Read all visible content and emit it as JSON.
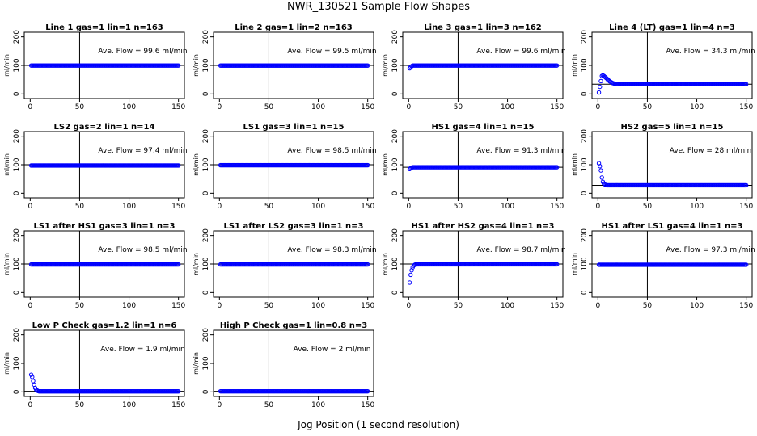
{
  "title": "NWR_130521  Sample Flow Shapes",
  "xlabel": "Jog Position (1 second resolution)",
  "chart_data": [
    {
      "type": "scatter",
      "title": "Line 1 gas=1 lin=1 n=163",
      "ylabel": "ml/min",
      "annotation": "Ave. Flow = 99.6  ml/min",
      "xlim": [
        0,
        150
      ],
      "ylim": [
        0,
        200
      ],
      "x_ticks": [
        0,
        50,
        100,
        150
      ],
      "y_ticks": [
        0,
        100,
        200
      ],
      "vline_x": 50,
      "hline_y": 100,
      "point_color": "#0000ff",
      "shape": {
        "kind": "flat",
        "level": 99.6
      }
    },
    {
      "type": "scatter",
      "title": "Line 2 gas=1 lin=2 n=163",
      "ylabel": "ml/min",
      "annotation": "Ave. Flow = 99.5  ml/min",
      "xlim": [
        0,
        150
      ],
      "ylim": [
        0,
        200
      ],
      "x_ticks": [
        0,
        50,
        100,
        150
      ],
      "y_ticks": [
        0,
        100,
        200
      ],
      "vline_x": 50,
      "hline_y": 100,
      "point_color": "#0000ff",
      "shape": {
        "kind": "flat",
        "level": 99.5
      }
    },
    {
      "type": "scatter",
      "title": "Line 3 gas=1 lin=3 n=162",
      "ylabel": "ml/min",
      "annotation": "Ave. Flow = 99.6  ml/min",
      "xlim": [
        0,
        150
      ],
      "ylim": [
        0,
        200
      ],
      "x_ticks": [
        0,
        50,
        100,
        150
      ],
      "y_ticks": [
        0,
        100,
        200
      ],
      "vline_x": 50,
      "hline_y": 100,
      "point_color": "#0000ff",
      "shape": {
        "kind": "rise",
        "start": [
          [
            1,
            90
          ],
          [
            2,
            94
          ],
          [
            3,
            97
          ]
        ],
        "level": 99.6
      }
    },
    {
      "type": "scatter",
      "title": "Line 4 (LT) gas=1 lin=4 n=3",
      "ylabel": "ml/min",
      "annotation": "Ave. Flow = 34.3  ml/min",
      "xlim": [
        0,
        150
      ],
      "ylim": [
        0,
        200
      ],
      "x_ticks": [
        0,
        50,
        100,
        150
      ],
      "y_ticks": [
        0,
        100,
        200
      ],
      "vline_x": 50,
      "hline_y": 34.3,
      "point_color": "#0000ff",
      "shape": {
        "kind": "spike",
        "start": [
          [
            1,
            5
          ],
          [
            2,
            25
          ],
          [
            3,
            45
          ],
          [
            4,
            63
          ],
          [
            5,
            65
          ],
          [
            6,
            63
          ],
          [
            7,
            60
          ],
          [
            8,
            57
          ],
          [
            9,
            54
          ],
          [
            10,
            50
          ],
          [
            11,
            47
          ],
          [
            12,
            44
          ],
          [
            13,
            42
          ],
          [
            14,
            40
          ],
          [
            15,
            38
          ],
          [
            16,
            37
          ],
          [
            17,
            36
          ],
          [
            18,
            35.5
          ],
          [
            19,
            35
          ]
        ],
        "level": 34.3
      }
    },
    {
      "type": "scatter",
      "title": "LS2 gas=2 lin=1 n=14",
      "ylabel": "ml/min",
      "annotation": "Ave. Flow = 97.4  ml/min",
      "xlim": [
        0,
        150
      ],
      "ylim": [
        0,
        200
      ],
      "x_ticks": [
        0,
        50,
        100,
        150
      ],
      "y_ticks": [
        0,
        100,
        200
      ],
      "vline_x": 50,
      "hline_y": 100,
      "point_color": "#0000ff",
      "shape": {
        "kind": "flat",
        "level": 97.4
      }
    },
    {
      "type": "scatter",
      "title": "LS1 gas=3 lin=1 n=15",
      "ylabel": "ml/min",
      "annotation": "Ave. Flow = 98.5  ml/min",
      "xlim": [
        0,
        150
      ],
      "ylim": [
        0,
        200
      ],
      "x_ticks": [
        0,
        50,
        100,
        150
      ],
      "y_ticks": [
        0,
        100,
        200
      ],
      "vline_x": 50,
      "hline_y": 100,
      "point_color": "#0000ff",
      "shape": {
        "kind": "flat",
        "level": 98.5
      }
    },
    {
      "type": "scatter",
      "title": "HS1 gas=4 lin=1 n=15",
      "ylabel": "ml/min",
      "annotation": "Ave. Flow = 91.3  ml/min",
      "xlim": [
        0,
        150
      ],
      "ylim": [
        0,
        200
      ],
      "x_ticks": [
        0,
        50,
        100,
        150
      ],
      "y_ticks": [
        0,
        100,
        200
      ],
      "vline_x": 50,
      "hline_y": 91.3,
      "point_color": "#0000ff",
      "shape": {
        "kind": "rise",
        "start": [
          [
            1,
            85
          ],
          [
            2,
            88
          ],
          [
            3,
            90
          ]
        ],
        "level": 91.3
      }
    },
    {
      "type": "scatter",
      "title": "HS2 gas=5 lin=1 n=15",
      "ylabel": "ml/min",
      "annotation": "Ave. Flow = 28  ml/min",
      "xlim": [
        0,
        150
      ],
      "ylim": [
        0,
        200
      ],
      "x_ticks": [
        0,
        50,
        100,
        150
      ],
      "y_ticks": [
        0,
        100,
        200
      ],
      "vline_x": 50,
      "hline_y": 28,
      "point_color": "#0000ff",
      "shape": {
        "kind": "spike",
        "start": [
          [
            1,
            105
          ],
          [
            2,
            95
          ],
          [
            3,
            80
          ],
          [
            4,
            55
          ],
          [
            5,
            40
          ],
          [
            6,
            34
          ],
          [
            7,
            31
          ],
          [
            8,
            29
          ]
        ],
        "level": 28
      }
    },
    {
      "type": "scatter",
      "title": "LS1 after HS1 gas=3 lin=1 n=3",
      "ylabel": "ml/min",
      "annotation": "Ave. Flow = 98.5  ml/min",
      "xlim": [
        0,
        150
      ],
      "ylim": [
        0,
        200
      ],
      "x_ticks": [
        0,
        50,
        100,
        150
      ],
      "y_ticks": [
        0,
        100,
        200
      ],
      "vline_x": 50,
      "hline_y": 100,
      "point_color": "#0000ff",
      "shape": {
        "kind": "flat",
        "level": 98.5
      }
    },
    {
      "type": "scatter",
      "title": "LS1 after LS2 gas=3 lin=1 n=3",
      "ylabel": "ml/min",
      "annotation": "Ave. Flow = 98.3  ml/min",
      "xlim": [
        0,
        150
      ],
      "ylim": [
        0,
        200
      ],
      "x_ticks": [
        0,
        50,
        100,
        150
      ],
      "y_ticks": [
        0,
        100,
        200
      ],
      "vline_x": 50,
      "hline_y": 100,
      "point_color": "#0000ff",
      "shape": {
        "kind": "flat",
        "level": 98.3
      }
    },
    {
      "type": "scatter",
      "title": "HS1 after HS2 gas=4 lin=1 n=3",
      "ylabel": "ml/min",
      "annotation": "Ave. Flow = 98.7  ml/min",
      "xlim": [
        0,
        150
      ],
      "ylim": [
        0,
        200
      ],
      "x_ticks": [
        0,
        50,
        100,
        150
      ],
      "y_ticks": [
        0,
        100,
        200
      ],
      "vline_x": 50,
      "hline_y": 100,
      "point_color": "#0000ff",
      "shape": {
        "kind": "rise",
        "start": [
          [
            1,
            35
          ],
          [
            2,
            62
          ],
          [
            3,
            78
          ],
          [
            4,
            88
          ],
          [
            5,
            94
          ],
          [
            6,
            97
          ]
        ],
        "level": 98.7
      }
    },
    {
      "type": "scatter",
      "title": "HS1 after LS1 gas=4 lin=1 n=3",
      "ylabel": "ml/min",
      "annotation": "Ave. Flow = 97.3  ml/min",
      "xlim": [
        0,
        150
      ],
      "ylim": [
        0,
        200
      ],
      "x_ticks": [
        0,
        50,
        100,
        150
      ],
      "y_ticks": [
        0,
        100,
        200
      ],
      "vline_x": 50,
      "hline_y": 100,
      "point_color": "#0000ff",
      "shape": {
        "kind": "flat",
        "level": 97.3
      }
    },
    {
      "type": "scatter",
      "title": "Low P Check gas=1.2 lin=1 n=6",
      "ylabel": "ml/min",
      "annotation": "Ave. Flow = 1.9  ml/min",
      "xlim": [
        0,
        150
      ],
      "ylim": [
        0,
        200
      ],
      "x_ticks": [
        0,
        50,
        100,
        150
      ],
      "y_ticks": [
        0,
        100,
        200
      ],
      "vline_x": 50,
      "hline_y": 1.9,
      "point_color": "#0000ff",
      "shape": {
        "kind": "spike",
        "start": [
          [
            1,
            60
          ],
          [
            2,
            52
          ],
          [
            3,
            38
          ],
          [
            4,
            25
          ],
          [
            5,
            14
          ],
          [
            6,
            8
          ],
          [
            7,
            5
          ],
          [
            8,
            3
          ]
        ],
        "level": 1.9
      }
    },
    {
      "type": "scatter",
      "title": "High P Check gas=1 lin=0.8 n=3",
      "ylabel": "ml/min",
      "annotation": "Ave. Flow = 2  ml/min",
      "xlim": [
        0,
        150
      ],
      "ylim": [
        0,
        200
      ],
      "x_ticks": [
        0,
        50,
        100,
        150
      ],
      "y_ticks": [
        0,
        100,
        200
      ],
      "vline_x": 50,
      "hline_y": 2,
      "point_color": "#0000ff",
      "shape": {
        "kind": "flat",
        "level": 2
      }
    }
  ]
}
